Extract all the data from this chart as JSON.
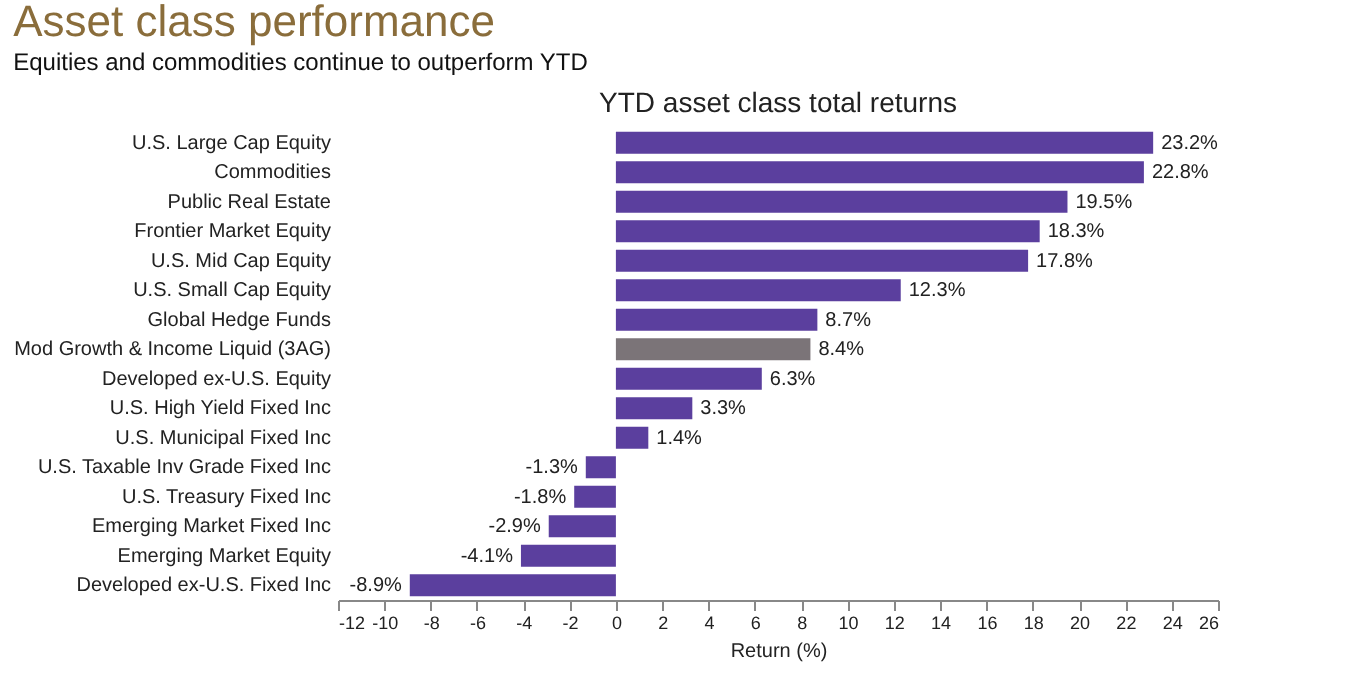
{
  "chart_data": {
    "type": "bar",
    "orientation": "horizontal",
    "title": "Asset class performance",
    "subtitle": "Equities and commodities continue to outperform YTD",
    "annotations": [
      "YTD asset class total returns"
    ],
    "xlabel": "Return (%)",
    "categories": [
      "U.S. Large Cap Equity",
      "Commodities",
      "Public Real Estate",
      "Frontier Market Equity",
      "U.S. Mid Cap Equity",
      "U.S. Small Cap Equity",
      "Global Hedge Funds",
      "Mod Growth & Income Liquid (3AG)",
      "Developed ex-U.S. Equity",
      "U.S. High Yield Fixed Inc",
      "U.S. Municipal Fixed Inc",
      "U.S. Taxable Inv Grade Fixed Inc",
      "U.S. Treasury Fixed Inc",
      "Emerging Market Fixed Inc",
      "Emerging Market Equity",
      "Developed ex-U.S. Fixed Inc"
    ],
    "values": [
      23.2,
      22.8,
      19.5,
      18.3,
      17.8,
      12.3,
      8.7,
      8.4,
      6.3,
      3.3,
      1.4,
      -1.3,
      -1.8,
      -2.9,
      -4.1,
      -8.9
    ],
    "value_labels": [
      "23.2%",
      "22.8%",
      "19.5%",
      "18.3%",
      "17.8%",
      "12.3%",
      "8.7%",
      "8.4%",
      "6.3%",
      "3.3%",
      "1.4%",
      "-1.3%",
      "-1.8%",
      "-2.9%",
      "-4.1%",
      "-8.9%"
    ],
    "colors": [
      "#5b3f9e",
      "#5b3f9e",
      "#5b3f9e",
      "#5b3f9e",
      "#5b3f9e",
      "#5b3f9e",
      "#5b3f9e",
      "#7b7478",
      "#5b3f9e",
      "#5b3f9e",
      "#5b3f9e",
      "#5b3f9e",
      "#5b3f9e",
      "#5b3f9e",
      "#5b3f9e",
      "#5b3f9e"
    ],
    "xlim": [
      -12,
      26
    ],
    "xticks": [
      -12,
      -10,
      -8,
      -6,
      -4,
      -2,
      0,
      2,
      4,
      6,
      8,
      10,
      12,
      14,
      16,
      18,
      20,
      22,
      24,
      26
    ],
    "grid": false
  }
}
